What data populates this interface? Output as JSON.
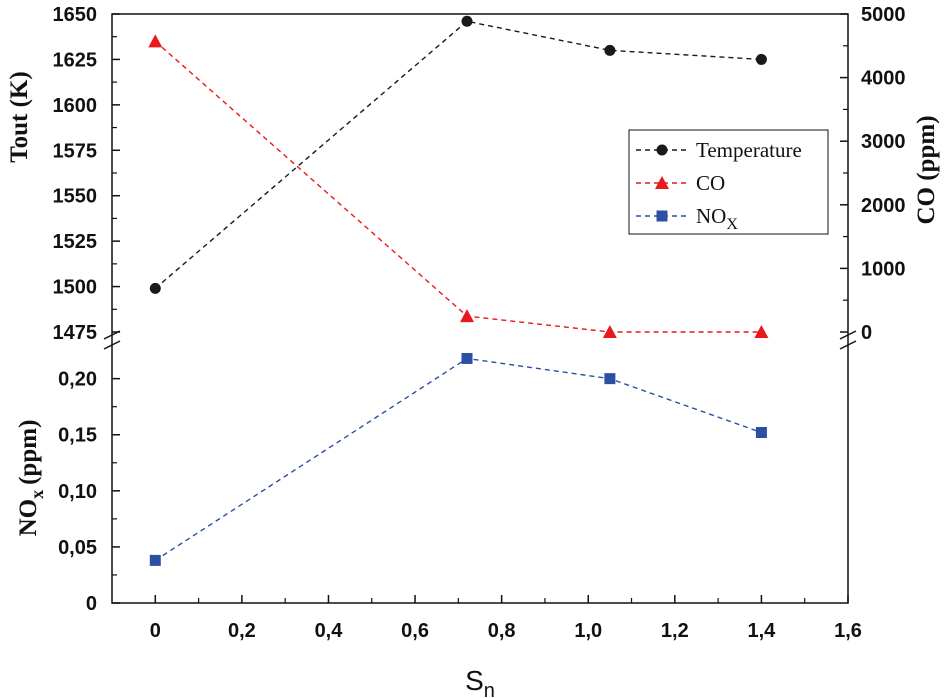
{
  "chart_data": {
    "type": "line",
    "x_label": "S",
    "x_label_sub": "n",
    "x_range": [
      -0.1,
      1.6
    ],
    "x_ticks": [
      "0",
      "0,2",
      "0,4",
      "0,6",
      "0,8",
      "1,0",
      "1,2",
      "1,4",
      "1,6"
    ],
    "top_panel": {
      "left_axis": {
        "label": "Tout (K)",
        "range": [
          1475,
          1650
        ],
        "ticks": [
          "1475",
          "1500",
          "1525",
          "1550",
          "1575",
          "1600",
          "1625",
          "1650"
        ]
      },
      "right_axis": {
        "label": "CO (ppm)",
        "range": [
          0,
          5000
        ],
        "ticks": [
          "0",
          "1000",
          "2000",
          "3000",
          "4000",
          "5000"
        ]
      }
    },
    "bottom_panel": {
      "left_axis": {
        "label": "NO",
        "label_sub": "x",
        "label_suffix": "(ppm)",
        "range": [
          0,
          0.23
        ],
        "ticks": [
          "0",
          "0,05",
          "0,10",
          "0,15",
          "0,20"
        ]
      }
    },
    "series": [
      {
        "name": "Temperature",
        "panel": "top",
        "axis": "left",
        "marker": "circle",
        "color": "#1a1a1a",
        "x": [
          0,
          0.72,
          1.05,
          1.4
        ],
        "values": [
          1499,
          1646,
          1630,
          1625
        ]
      },
      {
        "name": "CO",
        "panel": "top",
        "axis": "right",
        "marker": "triangle",
        "color": "#e8191c",
        "x": [
          0,
          0.72,
          1.05,
          1.4
        ],
        "values": [
          4570,
          250,
          0,
          0
        ]
      },
      {
        "name": "NO",
        "name_sub": "X",
        "panel": "bottom",
        "axis": "left",
        "marker": "square",
        "color": "#2c4fa3",
        "x": [
          0,
          0.72,
          1.05,
          1.4
        ],
        "values": [
          0.038,
          0.218,
          0.2,
          0.152
        ]
      }
    ]
  }
}
